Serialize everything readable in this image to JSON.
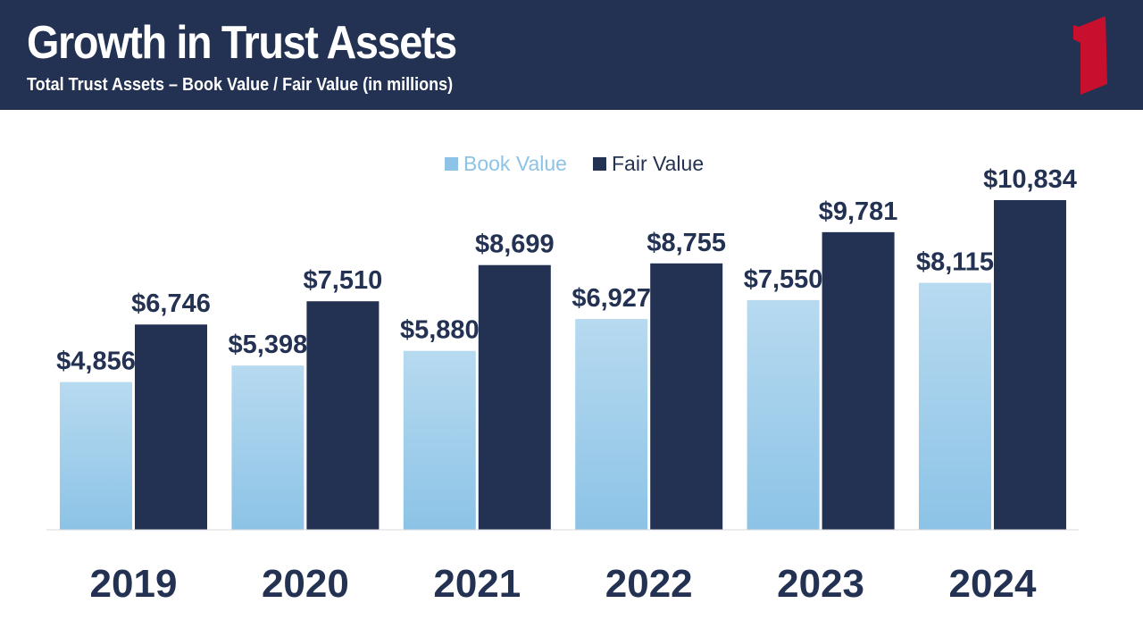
{
  "header": {
    "title": "Growth in Trust Assets",
    "subtitle": "Total Trust Assets – Book Value / Fair Value (in millions)",
    "logo_icon": "numeral-one-logo-icon"
  },
  "colors": {
    "header_bg": "#233152",
    "book_value_top": "#b7daf0",
    "book_value_bottom": "#8cc3e6",
    "fair_value": "#233152",
    "logo": "#c8102e",
    "label": "#233152"
  },
  "chart_data": {
    "type": "bar",
    "title": "Growth in Trust Assets",
    "subtitle": "Total Trust Assets – Book Value / Fair Value (in millions)",
    "categories": [
      "2019",
      "2020",
      "2021",
      "2022",
      "2023",
      "2024"
    ],
    "series": [
      {
        "name": "Book Value",
        "values": [
          4856,
          5398,
          5880,
          6927,
          7550,
          8115
        ],
        "labels": [
          "$4,856",
          "$5,398",
          "$5,880",
          "$6,927",
          "$7,550",
          "$8,115"
        ]
      },
      {
        "name": "Fair Value",
        "values": [
          6746,
          7510,
          8699,
          8755,
          9781,
          10834
        ],
        "labels": [
          "$6,746",
          "$7,510",
          "$8,699",
          "$8,755",
          "$9,781",
          "$10,834"
        ]
      }
    ],
    "ylim": [
      0,
      10834
    ],
    "grid": false,
    "legend": "top-center",
    "xlabel": "",
    "ylabel": ""
  }
}
